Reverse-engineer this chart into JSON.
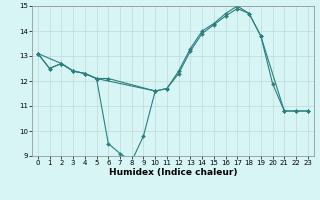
{
  "line1_x": [
    0,
    1,
    2,
    3,
    4,
    5,
    6,
    10,
    11,
    12,
    13,
    14,
    15,
    16,
    17,
    18,
    19,
    20,
    21,
    22,
    23
  ],
  "line1_y": [
    13.1,
    12.5,
    12.7,
    12.4,
    12.3,
    12.1,
    12.1,
    11.6,
    11.7,
    12.4,
    13.3,
    14.0,
    14.3,
    14.7,
    15.0,
    14.7,
    13.8,
    11.9,
    10.8,
    10.8,
    10.8
  ],
  "line2_x": [
    0,
    1,
    2,
    3,
    4,
    5,
    6,
    7,
    8,
    9,
    10
  ],
  "line2_y": [
    13.1,
    12.5,
    12.7,
    12.4,
    12.3,
    12.1,
    9.5,
    9.1,
    8.8,
    9.8,
    11.6
  ],
  "line3_x": [
    0,
    2,
    3,
    4,
    5,
    10,
    11,
    12,
    13,
    14,
    15,
    16,
    17,
    18,
    19,
    21,
    22,
    23
  ],
  "line3_y": [
    13.1,
    12.7,
    12.4,
    12.3,
    12.1,
    11.6,
    11.7,
    12.3,
    13.2,
    13.9,
    14.25,
    14.6,
    14.9,
    14.7,
    13.8,
    10.8,
    10.8,
    10.8
  ],
  "bg_color": "#d8f5f5",
  "line_color": "#2a7f7f",
  "grid_color": "#c0d8d8",
  "xlim": [
    -0.5,
    23.5
  ],
  "ylim": [
    9,
    15
  ],
  "yticks": [
    9,
    10,
    11,
    12,
    13,
    14,
    15
  ],
  "xticks": [
    0,
    1,
    2,
    3,
    4,
    5,
    6,
    7,
    8,
    9,
    10,
    11,
    12,
    13,
    14,
    15,
    16,
    17,
    18,
    19,
    20,
    21,
    22,
    23
  ],
  "xlabel": "Humidex (Indice chaleur)",
  "marker": "D",
  "markersize": 2.0,
  "linewidth": 0.8,
  "tick_fontsize": 5.0,
  "label_fontsize": 6.5
}
